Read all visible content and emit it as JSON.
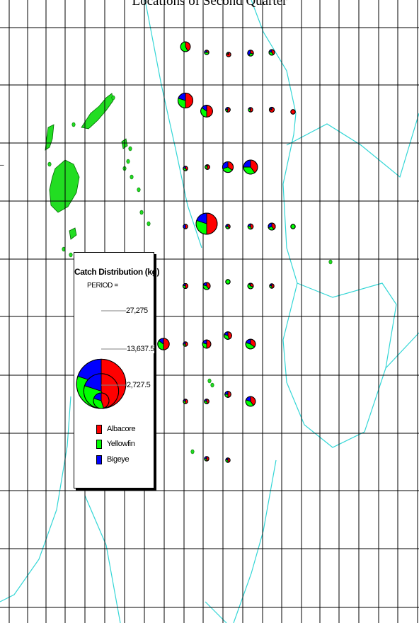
{
  "map": {
    "title": "Locations of Second Quarter",
    "grid_color": "#000000",
    "boundary_color": "#33d6d6",
    "land_color": "#22dd22",
    "outline_color": "#006600"
  },
  "legend": {
    "title": "Catch Distribution (kg)",
    "period_label": "PERIOD =",
    "size_scale": [
      {
        "value": 27275,
        "label": "27,275"
      },
      {
        "value": 13637.5,
        "label": "13,637.5"
      },
      {
        "value": 2727.5,
        "label": "2,727.5"
      }
    ],
    "species": [
      {
        "name": "Albacore",
        "color": "#ff0000"
      },
      {
        "name": "Yellowfin",
        "color": "#00ff00"
      },
      {
        "name": "Bigeye",
        "color": "#0000ff"
      }
    ]
  },
  "pie_markers": [
    {
      "catch_kg": 1500,
      "albacore": 0.42,
      "yellowfin": 0.58,
      "bigeye": 0.0
    },
    {
      "catch_kg": 80,
      "albacore": 0.25,
      "yellowfin": 0.5,
      "bigeye": 0.25
    },
    {
      "catch_kg": 90,
      "albacore": 0.8,
      "yellowfin": 0.1,
      "bigeye": 0.1
    },
    {
      "catch_kg": 550,
      "albacore": 0.3,
      "yellowfin": 0.3,
      "bigeye": 0.4
    },
    {
      "catch_kg": 500,
      "albacore": 0.4,
      "yellowfin": 0.4,
      "bigeye": 0.2
    },
    {
      "catch_kg": 3500,
      "albacore": 0.5,
      "yellowfin": 0.3,
      "bigeye": 0.2
    },
    {
      "catch_kg": 2200,
      "albacore": 0.5,
      "yellowfin": 0.35,
      "bigeye": 0.15
    },
    {
      "catch_kg": 350,
      "albacore": 0.55,
      "yellowfin": 0.25,
      "bigeye": 0.2
    },
    {
      "catch_kg": 300,
      "albacore": 0.55,
      "yellowfin": 0.3,
      "bigeye": 0.15
    },
    {
      "catch_kg": 400,
      "albacore": 0.75,
      "yellowfin": 0.1,
      "bigeye": 0.15
    },
    {
      "catch_kg": 20,
      "albacore": 1.0,
      "yellowfin": 0.0,
      "bigeye": 0.0
    },
    {
      "catch_kg": 60,
      "albacore": 0.4,
      "yellowfin": 0.4,
      "bigeye": 0.2
    },
    {
      "catch_kg": 350,
      "albacore": 0.55,
      "yellowfin": 0.35,
      "bigeye": 0.1
    },
    {
      "catch_kg": 1800,
      "albacore": 0.35,
      "yellowfin": 0.35,
      "bigeye": 0.3
    },
    {
      "catch_kg": 3100,
      "albacore": 0.4,
      "yellowfin": 0.35,
      "bigeye": 0.25
    },
    {
      "catch_kg": 7000,
      "albacore": 0.5,
      "yellowfin": 0.3,
      "bigeye": 0.2
    },
    {
      "catch_kg": 300,
      "albacore": 0.4,
      "yellowfin": 0.35,
      "bigeye": 0.25
    },
    {
      "catch_kg": 450,
      "albacore": 0.45,
      "yellowfin": 0.35,
      "bigeye": 0.2
    },
    {
      "catch_kg": 800,
      "albacore": 0.4,
      "yellowfin": 0.3,
      "bigeye": 0.3
    },
    {
      "catch_kg": 20,
      "albacore": 0.0,
      "yellowfin": 1.0,
      "bigeye": 0.0
    },
    {
      "catch_kg": 30,
      "albacore": 0.5,
      "yellowfin": 0.0,
      "bigeye": 0.5
    },
    {
      "catch_kg": 20,
      "albacore": 0.0,
      "yellowfin": 1.0,
      "bigeye": 0.0
    },
    {
      "catch_kg": 400,
      "albacore": 0.5,
      "yellowfin": 0.3,
      "bigeye": 0.2
    },
    {
      "catch_kg": 800,
      "albacore": 0.4,
      "yellowfin": 0.4,
      "bigeye": 0.2
    },
    {
      "catch_kg": 500,
      "albacore": 0.3,
      "yellowfin": 0.6,
      "bigeye": 0.1
    },
    {
      "catch_kg": 150,
      "albacore": 0.5,
      "yellowfin": 0.3,
      "bigeye": 0.2
    },
    {
      "catch_kg": 40,
      "albacore": 0.5,
      "yellowfin": 0.25,
      "bigeye": 0.25
    },
    {
      "catch_kg": 1100,
      "albacore": 0.5,
      "yellowfin": 0.3,
      "bigeye": 0.2
    },
    {
      "catch_kg": 900,
      "albacore": 0.45,
      "yellowfin": 0.35,
      "bigeye": 0.2
    },
    {
      "catch_kg": 1500,
      "albacore": 0.35,
      "yellowfin": 0.45,
      "bigeye": 0.2
    },
    {
      "catch_kg": 2100,
      "albacore": 0.5,
      "yellowfin": 0.35,
      "bigeye": 0.15
    },
    {
      "catch_kg": 20,
      "albacore": 0.5,
      "yellowfin": 0.3,
      "bigeye": 0.2
    },
    {
      "catch_kg": 600,
      "albacore": 0.5,
      "yellowfin": 0.25,
      "bigeye": 0.25
    },
    {
      "catch_kg": 1500,
      "albacore": 0.4,
      "yellowfin": 0.4,
      "bigeye": 0.2
    },
    {
      "catch_kg": 350,
      "albacore": 0.45,
      "yellowfin": 0.35,
      "bigeye": 0.2
    },
    {
      "catch_kg": 20,
      "albacore": 0.5,
      "yellowfin": 0.25,
      "bigeye": 0.25
    },
    {
      "catch_kg": 40,
      "albacore": 0.5,
      "yellowfin": 0.3,
      "bigeye": 0.2
    }
  ]
}
